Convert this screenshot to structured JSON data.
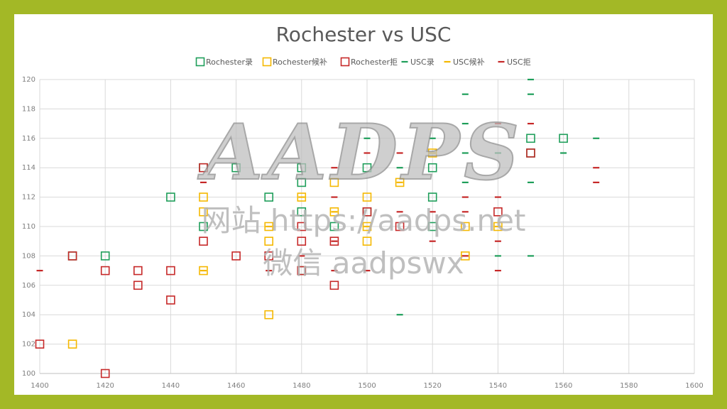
{
  "watermark": {
    "logo_text": "AADPS",
    "site_line": "网站 https://aadps.net",
    "wechat_line": "微信 aadpswx"
  },
  "chart_data": {
    "type": "scatter",
    "title": "Rochester vs USC",
    "xlabel": "",
    "ylabel": "",
    "xlim": [
      1400,
      1600
    ],
    "ylim": [
      100,
      120
    ],
    "x_ticks": [
      1400,
      1420,
      1440,
      1460,
      1480,
      1500,
      1520,
      1540,
      1560,
      1580,
      1600
    ],
    "y_ticks": [
      100,
      102,
      104,
      106,
      108,
      110,
      112,
      114,
      116,
      118,
      120
    ],
    "grid": true,
    "legend_position": "top",
    "series": [
      {
        "name": "Rochester录",
        "marker": "square",
        "color": "#1e9e5a",
        "points": [
          [
            1410,
            108
          ],
          [
            1420,
            108
          ],
          [
            1440,
            112
          ],
          [
            1450,
            114
          ],
          [
            1450,
            110
          ],
          [
            1460,
            114
          ],
          [
            1470,
            112
          ],
          [
            1480,
            114
          ],
          [
            1480,
            113
          ],
          [
            1480,
            111
          ],
          [
            1480,
            107
          ],
          [
            1490,
            110
          ],
          [
            1500,
            114
          ],
          [
            1500,
            111
          ],
          [
            1520,
            114
          ],
          [
            1520,
            112
          ],
          [
            1520,
            110
          ],
          [
            1550,
            116
          ],
          [
            1550,
            115
          ],
          [
            1560,
            116
          ]
        ]
      },
      {
        "name": "Rochester候补",
        "marker": "square",
        "color": "#f5b800",
        "points": [
          [
            1410,
            102
          ],
          [
            1450,
            112
          ],
          [
            1450,
            111
          ],
          [
            1450,
            107
          ],
          [
            1470,
            110
          ],
          [
            1470,
            109
          ],
          [
            1470,
            104
          ],
          [
            1480,
            112
          ],
          [
            1490,
            113
          ],
          [
            1490,
            111
          ],
          [
            1500,
            112
          ],
          [
            1500,
            110
          ],
          [
            1500,
            109
          ],
          [
            1510,
            113
          ],
          [
            1520,
            115
          ],
          [
            1530,
            110
          ],
          [
            1530,
            108
          ],
          [
            1540,
            110
          ]
        ]
      },
      {
        "name": "Rochester拒",
        "marker": "square",
        "color": "#c62828",
        "points": [
          [
            1400,
            102
          ],
          [
            1410,
            108
          ],
          [
            1420,
            107
          ],
          [
            1420,
            100
          ],
          [
            1430,
            107
          ],
          [
            1430,
            106
          ],
          [
            1440,
            107
          ],
          [
            1440,
            105
          ],
          [
            1450,
            114
          ],
          [
            1450,
            109
          ],
          [
            1460,
            108
          ],
          [
            1470,
            108
          ],
          [
            1480,
            110
          ],
          [
            1480,
            109
          ],
          [
            1480,
            107
          ],
          [
            1490,
            109
          ],
          [
            1490,
            106
          ],
          [
            1500,
            111
          ],
          [
            1510,
            110
          ],
          [
            1540,
            111
          ],
          [
            1550,
            115
          ]
        ]
      },
      {
        "name": "USC录",
        "marker": "dash",
        "color": "#1e9e5a",
        "points": [
          [
            1500,
            116
          ],
          [
            1510,
            114
          ],
          [
            1510,
            104
          ],
          [
            1520,
            116
          ],
          [
            1520,
            115
          ],
          [
            1530,
            119
          ],
          [
            1530,
            117
          ],
          [
            1530,
            115
          ],
          [
            1530,
            113
          ],
          [
            1540,
            115
          ],
          [
            1540,
            108
          ],
          [
            1550,
            120
          ],
          [
            1550,
            119
          ],
          [
            1550,
            113
          ],
          [
            1550,
            108
          ],
          [
            1560,
            115
          ],
          [
            1570,
            116
          ]
        ]
      },
      {
        "name": "USC候补",
        "marker": "dash",
        "color": "#f5b800",
        "points": [
          [
            1450,
            107
          ],
          [
            1470,
            110
          ],
          [
            1480,
            112
          ],
          [
            1490,
            111
          ],
          [
            1500,
            110
          ],
          [
            1510,
            113
          ],
          [
            1520,
            115
          ],
          [
            1530,
            108
          ],
          [
            1540,
            110
          ]
        ]
      },
      {
        "name": "USC拒",
        "marker": "dash",
        "color": "#c62828",
        "points": [
          [
            1400,
            107
          ],
          [
            1450,
            113
          ],
          [
            1470,
            107
          ],
          [
            1480,
            108
          ],
          [
            1490,
            114
          ],
          [
            1490,
            112
          ],
          [
            1490,
            109
          ],
          [
            1490,
            107
          ],
          [
            1500,
            115
          ],
          [
            1500,
            107
          ],
          [
            1510,
            115
          ],
          [
            1510,
            111
          ],
          [
            1520,
            111
          ],
          [
            1520,
            109
          ],
          [
            1530,
            112
          ],
          [
            1530,
            111
          ],
          [
            1530,
            108
          ],
          [
            1540,
            117
          ],
          [
            1540,
            112
          ],
          [
            1540,
            109
          ],
          [
            1540,
            107
          ],
          [
            1550,
            117
          ],
          [
            1570,
            114
          ],
          [
            1570,
            113
          ]
        ]
      }
    ]
  }
}
